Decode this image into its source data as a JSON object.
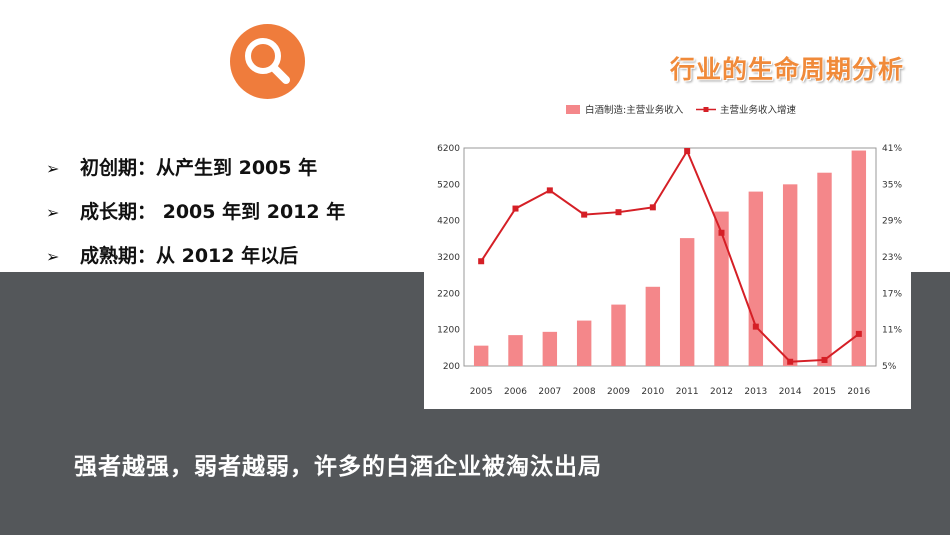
{
  "page": {
    "title": "行业的生命周期分析",
    "stages": [
      {
        "text": "初创期：从产生到 2005 年"
      },
      {
        "text": "成长期： 2005 年到 2012 年"
      },
      {
        "text": "成熟期：从 2012 年以后"
      }
    ],
    "conclusion": "强者越强，弱者越弱，许多的白酒企业被淘汰出局"
  },
  "colors": {
    "accent": "#ef7c3c",
    "title": "#f08a3a",
    "band": "#54575a",
    "bar": "#f4878a",
    "line": "#d51f26"
  },
  "icons": {
    "badge": "search-icon"
  },
  "chart_data": {
    "type": "bar",
    "categories": [
      "2005",
      "2006",
      "2007",
      "2008",
      "2009",
      "2010",
      "2011",
      "2012",
      "2013",
      "2014",
      "2015",
      "2016"
    ],
    "series": [
      {
        "name": "白酒制造:主营业务收入",
        "type": "bar",
        "axis": "left",
        "values": [
          760,
          1050,
          1140,
          1450,
          1890,
          2380,
          3720,
          4450,
          5000,
          5200,
          5520,
          6130
        ]
      },
      {
        "name": "主营业务收入增速",
        "type": "line",
        "axis": "right",
        "values": [
          22.3,
          31.0,
          34.0,
          30.0,
          30.4,
          31.2,
          40.5,
          27.0,
          11.5,
          5.7,
          6.0,
          10.3
        ]
      }
    ],
    "ylim_left": [
      200,
      6200
    ],
    "yticks_left": [
      200,
      1200,
      2200,
      3200,
      4200,
      5200,
      6200
    ],
    "ylim_right": [
      5,
      41
    ],
    "yticks_right": [
      "5%",
      "11%",
      "17%",
      "23%",
      "29%",
      "35%",
      "41%"
    ],
    "legend": "top",
    "grid": false
  }
}
